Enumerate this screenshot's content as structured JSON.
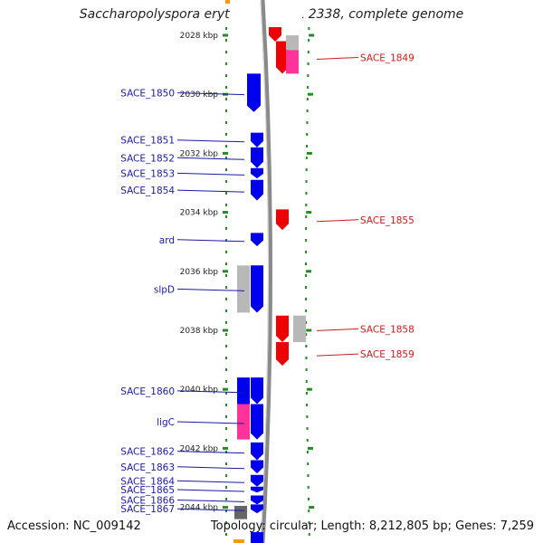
{
  "title": "Saccharopolyspora erythraea NRRL 2338, complete genome",
  "footer": {
    "accession": "Accession: NC_009142",
    "summary": "Topology: circular; Length: 8,212,805 bp; Genes: 7,259"
  },
  "colors": {
    "forward": "#0000ee",
    "reverse": "#ee0000",
    "gray": "#b8b8b8",
    "pink": "#ff3399",
    "backbone": "#8a8a8a",
    "tick": "#228b22",
    "label_left": "#1a1aa6",
    "label_right": "#cc1a1a"
  },
  "axis": {
    "unit": "kbp",
    "ticks": [
      {
        "value": 2028,
        "label": "2028 kbp"
      },
      {
        "value": 2030,
        "label": "2030 kbp"
      },
      {
        "value": 2032,
        "label": "2032 kbp"
      },
      {
        "value": 2034,
        "label": "2034 kbp"
      },
      {
        "value": 2036,
        "label": "2036 kbp"
      },
      {
        "value": 2038,
        "label": "2038 kbp"
      },
      {
        "value": 2040,
        "label": "2040 kbp"
      },
      {
        "value": 2042,
        "label": "2042 kbp"
      },
      {
        "value": 2044,
        "label": "2044 kbp"
      }
    ]
  },
  "genes_left": [
    {
      "name": "SACE_1850",
      "start": 2029.3,
      "end": 2030.6
    },
    {
      "name": "SACE_1851",
      "start": 2031.3,
      "end": 2031.8
    },
    {
      "name": "SACE_1852",
      "start": 2031.8,
      "end": 2032.5
    },
    {
      "name": "SACE_1853",
      "start": 2032.5,
      "end": 2032.85
    },
    {
      "name": "SACE_1854",
      "start": 2032.9,
      "end": 2033.6
    },
    {
      "name": "ard",
      "start": 2034.7,
      "end": 2035.15
    },
    {
      "name": "slpD",
      "start": 2035.8,
      "end": 2037.4
    },
    {
      "name": "SACE_1860",
      "start": 2039.6,
      "end": 2040.5
    },
    {
      "name": "ligC",
      "start": 2040.5,
      "end": 2041.7
    },
    {
      "name": "SACE_1862",
      "start": 2041.8,
      "end": 2042.4
    },
    {
      "name": "SACE_1863",
      "start": 2042.4,
      "end": 2042.85
    },
    {
      "name": "SACE_1864",
      "start": 2042.9,
      "end": 2043.3
    },
    {
      "name": "SACE_1865",
      "start": 2043.3,
      "end": 2043.5
    },
    {
      "name": "SACE_1866",
      "start": 2043.6,
      "end": 2043.9
    },
    {
      "name": "SACE_1867",
      "start": 2043.9,
      "end": 2044.2
    }
  ],
  "genes_right": [
    {
      "name": "SACE_1849",
      "start": 2028.2,
      "end": 2029.3
    },
    {
      "name": "SACE_1855",
      "start": 2033.9,
      "end": 2034.6
    },
    {
      "name": "SACE_1858",
      "start": 2037.5,
      "end": 2038.4
    },
    {
      "name": "SACE_1859",
      "start": 2038.4,
      "end": 2039.2
    }
  ]
}
